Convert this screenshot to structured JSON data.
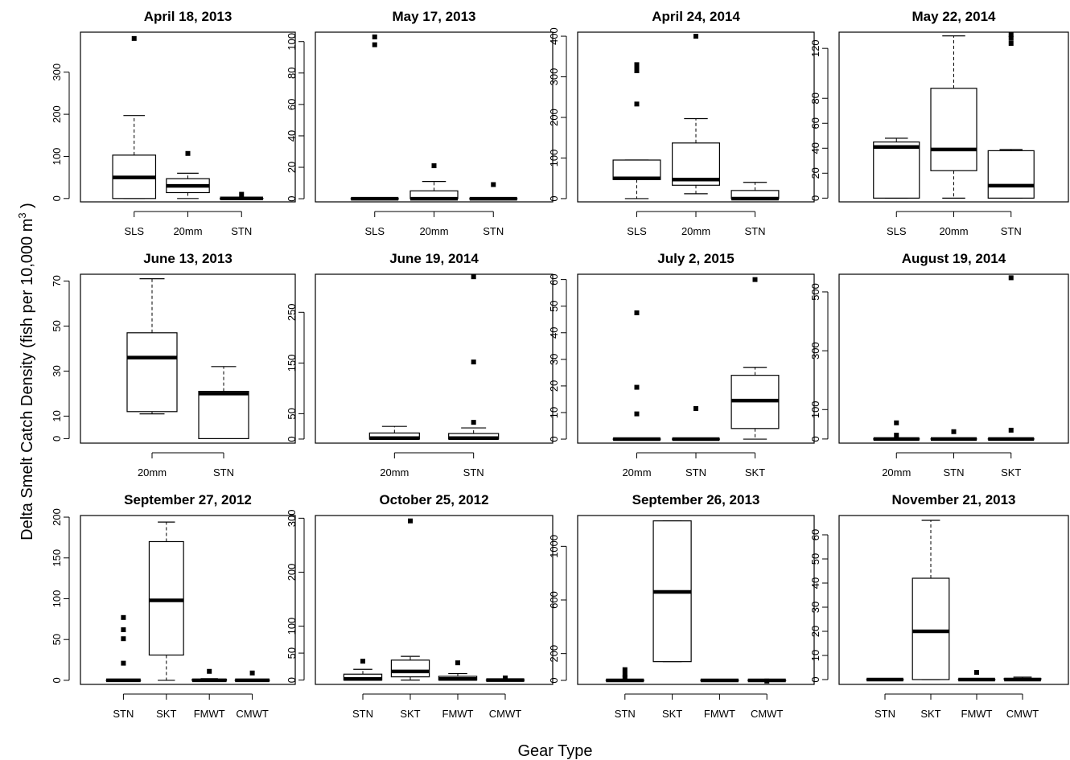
{
  "figure": {
    "ylabel_main": "Delta Smelt Catch Density (fish per 10,000 m",
    "ylabel_sup": "3",
    "ylabel_end": " )",
    "xlabel": "Gear Type"
  },
  "chart_data": [
    {
      "type": "box",
      "title": "April 18, 2013",
      "categories": [
        "SLS",
        "20mm",
        "STN"
      ],
      "ylim": [
        -8,
        395
      ],
      "yticks": [
        0,
        100,
        200,
        300
      ],
      "boxes": [
        {
          "whisker_low": 0,
          "q1": 0,
          "median": 50,
          "q3": 103,
          "whisker_high": 197,
          "outliers": [
            380
          ]
        },
        {
          "whisker_low": 0,
          "q1": 14,
          "median": 30,
          "q3": 47,
          "whisker_high": 60,
          "outliers": [
            107
          ]
        },
        {
          "whisker_low": 0,
          "q1": 0,
          "median": 0,
          "q3": 0,
          "whisker_high": 0,
          "outliers": [
            10
          ]
        }
      ]
    },
    {
      "type": "box",
      "title": "May 17, 2013",
      "categories": [
        "SLS",
        "20mm",
        "STN"
      ],
      "ylim": [
        -2,
        106
      ],
      "yticks": [
        0,
        20,
        40,
        60,
        80,
        100
      ],
      "boxes": [
        {
          "whisker_low": 0,
          "q1": 0,
          "median": 0,
          "q3": 0,
          "whisker_high": 0,
          "outliers": [
            98,
            103
          ]
        },
        {
          "whisker_low": 0,
          "q1": 0,
          "median": 0,
          "q3": 5,
          "whisker_high": 11,
          "outliers": [
            21
          ]
        },
        {
          "whisker_low": 0,
          "q1": 0,
          "median": 0,
          "q3": 0,
          "whisker_high": 0,
          "outliers": [
            9
          ]
        }
      ]
    },
    {
      "type": "box",
      "title": "April 24, 2014",
      "categories": [
        "SLS",
        "20mm",
        "STN"
      ],
      "ylim": [
        -8,
        410
      ],
      "yticks": [
        0,
        100,
        200,
        300,
        400
      ],
      "boxes": [
        {
          "whisker_low": 0,
          "q1": 47,
          "median": 50,
          "q3": 95,
          "whisker_high": 95,
          "outliers": [
            233,
            315,
            320,
            330
          ]
        },
        {
          "whisker_low": 12,
          "q1": 33,
          "median": 47,
          "q3": 137,
          "whisker_high": 197,
          "outliers": [
            400
          ]
        },
        {
          "whisker_low": 0,
          "q1": 0,
          "median": 0,
          "q3": 20,
          "whisker_high": 40,
          "outliers": []
        }
      ]
    },
    {
      "type": "box",
      "title": "May 22, 2014",
      "categories": [
        "SLS",
        "20mm",
        "STN"
      ],
      "ylim": [
        -3,
        133
      ],
      "yticks": [
        0,
        20,
        40,
        60,
        80,
        120
      ],
      "boxes": [
        {
          "whisker_low": 0,
          "q1": 0,
          "median": 41,
          "q3": 45,
          "whisker_high": 48,
          "outliers": []
        },
        {
          "whisker_low": 0,
          "q1": 22,
          "median": 39,
          "q3": 88,
          "whisker_high": 130,
          "outliers": []
        },
        {
          "whisker_low": 0,
          "q1": 0,
          "median": 10,
          "q3": 38,
          "whisker_high": 39,
          "outliers": [
            124,
            128,
            131
          ]
        }
      ]
    },
    {
      "type": "box",
      "title": "June 13, 2013",
      "categories": [
        "20mm",
        "STN"
      ],
      "ylim": [
        -2,
        73
      ],
      "yticks": [
        0,
        10,
        30,
        50,
        70
      ],
      "boxes": [
        {
          "whisker_low": 11,
          "q1": 12,
          "median": 36,
          "q3": 47,
          "whisker_high": 71,
          "outliers": []
        },
        {
          "whisker_low": 0,
          "q1": 0,
          "median": 20,
          "q3": 21,
          "whisker_high": 32,
          "outliers": []
        }
      ]
    },
    {
      "type": "box",
      "title": "June 19, 2014",
      "categories": [
        "20mm",
        "STN"
      ],
      "ylim": [
        -8,
        325
      ],
      "yticks": [
        0,
        50,
        150,
        250
      ],
      "boxes": [
        {
          "whisker_low": 0,
          "q1": 0,
          "median": 2,
          "q3": 12,
          "whisker_high": 25,
          "outliers": []
        },
        {
          "whisker_low": 0,
          "q1": 0,
          "median": 2,
          "q3": 11,
          "whisker_high": 22,
          "outliers": [
            33,
            152,
            320
          ]
        }
      ]
    },
    {
      "type": "box",
      "title": "July 2, 2015",
      "categories": [
        "20mm",
        "STN",
        "SKT"
      ],
      "ylim": [
        -1.5,
        62
      ],
      "yticks": [
        0,
        10,
        20,
        30,
        40,
        50,
        60
      ],
      "boxes": [
        {
          "whisker_low": 0,
          "q1": 0,
          "median": 0,
          "q3": 0,
          "whisker_high": 0,
          "outliers": [
            9.5,
            19.5,
            47.5
          ]
        },
        {
          "whisker_low": 0,
          "q1": 0,
          "median": 0,
          "q3": 0,
          "whisker_high": 0,
          "outliers": [
            11.5
          ]
        },
        {
          "whisker_low": 0,
          "q1": 4,
          "median": 14.5,
          "q3": 24,
          "whisker_high": 27,
          "outliers": [
            60
          ]
        }
      ]
    },
    {
      "type": "box",
      "title": "August 19, 2014",
      "categories": [
        "20mm",
        "STN",
        "SKT"
      ],
      "ylim": [
        -14,
        560
      ],
      "yticks": [
        0,
        100,
        300,
        500
      ],
      "boxes": [
        {
          "whisker_low": 0,
          "q1": 0,
          "median": 0,
          "q3": 0,
          "whisker_high": 0,
          "outliers": [
            13,
            55
          ]
        },
        {
          "whisker_low": 0,
          "q1": 0,
          "median": 0,
          "q3": 0,
          "whisker_high": 0,
          "outliers": [
            25
          ]
        },
        {
          "whisker_low": 0,
          "q1": 0,
          "median": 0,
          "q3": 0,
          "whisker_high": 0,
          "outliers": [
            30,
            548
          ]
        }
      ]
    },
    {
      "type": "box",
      "title": "September 27, 2012",
      "categories": [
        "STN",
        "SKT",
        "FMWT",
        "CMWT"
      ],
      "ylim": [
        -5,
        202
      ],
      "yticks": [
        0,
        50,
        100,
        150,
        200
      ],
      "boxes": [
        {
          "whisker_low": 0,
          "q1": 0,
          "median": 0,
          "q3": 0,
          "whisker_high": 0,
          "outliers": [
            21,
            51,
            62,
            77
          ]
        },
        {
          "whisker_low": 0,
          "q1": 31,
          "median": 98,
          "q3": 170,
          "whisker_high": 194,
          "outliers": []
        },
        {
          "whisker_low": 0,
          "q1": 0,
          "median": 0,
          "q3": 1,
          "whisker_high": 2,
          "outliers": [
            11
          ]
        },
        {
          "whisker_low": 0,
          "q1": 0,
          "median": 0,
          "q3": 0,
          "whisker_high": 0,
          "outliers": [
            9
          ]
        }
      ]
    },
    {
      "type": "box",
      "title": "October 25, 2012",
      "categories": [
        "STN",
        "SKT",
        "FMWT",
        "CMWT"
      ],
      "ylim": [
        -8,
        305
      ],
      "yticks": [
        0,
        50,
        100,
        200,
        300
      ],
      "boxes": [
        {
          "whisker_low": 0,
          "q1": 0,
          "median": 2,
          "q3": 11,
          "whisker_high": 20,
          "outliers": [
            35
          ]
        },
        {
          "whisker_low": 0,
          "q1": 6,
          "median": 16,
          "q3": 37,
          "whisker_high": 44,
          "outliers": [
            295
          ]
        },
        {
          "whisker_low": 0,
          "q1": 0,
          "median": 2,
          "q3": 7,
          "whisker_high": 12,
          "outliers": [
            32
          ]
        },
        {
          "whisker_low": 0,
          "q1": 0,
          "median": 0,
          "q3": 0,
          "whisker_high": 0,
          "outliers": [
            4
          ]
        }
      ]
    },
    {
      "type": "box",
      "title": "September 26, 2013",
      "categories": [
        "STN",
        "SKT",
        "FMWT",
        "CMWT"
      ],
      "ylim": [
        -30,
        1230
      ],
      "yticks": [
        0,
        200,
        600,
        1000
      ],
      "boxes": [
        {
          "whisker_low": 0,
          "q1": 0,
          "median": 0,
          "q3": 0,
          "whisker_high": 0,
          "outliers": [
            20,
            45,
            80
          ]
        },
        {
          "whisker_low": 140,
          "q1": 140,
          "median": 660,
          "q3": 1190,
          "whisker_high": 1190,
          "outliers": []
        },
        {
          "whisker_low": 0,
          "q1": 0,
          "median": 0,
          "q3": 0,
          "whisker_high": 0,
          "outliers": []
        },
        {
          "whisker_low": 0,
          "q1": 0,
          "median": 0,
          "q3": 0,
          "whisker_high": 0,
          "outliers": [
            -5
          ]
        }
      ]
    },
    {
      "type": "box",
      "title": "November 21, 2013",
      "categories": [
        "STN",
        "SKT",
        "FMWT",
        "CMWT"
      ],
      "ylim": [
        -2,
        68
      ],
      "yticks": [
        0,
        10,
        20,
        30,
        40,
        50,
        60
      ],
      "boxes": [
        {
          "whisker_low": 0,
          "q1": 0,
          "median": 0,
          "q3": 0,
          "whisker_high": 0,
          "outliers": []
        },
        {
          "whisker_low": 0,
          "q1": 0,
          "median": 20,
          "q3": 42,
          "whisker_high": 66,
          "outliers": []
        },
        {
          "whisker_low": 0,
          "q1": 0,
          "median": 0,
          "q3": 0,
          "whisker_high": 0,
          "outliers": [
            3
          ]
        },
        {
          "whisker_low": 0,
          "q1": 0,
          "median": 0,
          "q3": 0.5,
          "whisker_high": 1,
          "outliers": []
        }
      ]
    }
  ]
}
